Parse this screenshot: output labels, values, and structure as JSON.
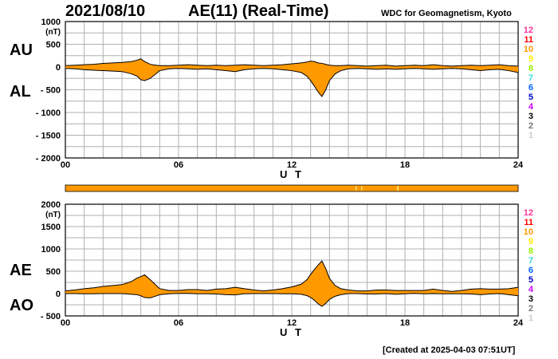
{
  "header": {
    "date": "2021/08/10",
    "title": "AE(11) (Real-Time)",
    "source": "WDC for Geomagnetism, Kyoto"
  },
  "footer": {
    "created": "[Created at 2025-04-03 07:51UT]"
  },
  "labels": {
    "au": "AU",
    "al": "AL",
    "ae": "AE",
    "ao": "AO"
  },
  "colors": {
    "fill": "#ff9900",
    "line": "#000000",
    "grid": "#b0b0b0",
    "status_bar": "#ff9900"
  },
  "legend": {
    "numbers": [
      "12",
      "11",
      "10",
      "9",
      "8",
      "7",
      "6",
      "5",
      "4",
      "3",
      "2",
      "1"
    ],
    "colors": [
      "#ff3399",
      "#ff0000",
      "#ff9900",
      "#ffee00",
      "#99ee00",
      "#33dddd",
      "#0066ff",
      "#0000cc",
      "#cc00ff",
      "#000000",
      "#777777",
      "#cccccc"
    ]
  },
  "chart_data": [
    {
      "type": "area",
      "panel": "AU/AL",
      "xlabel": "U T",
      "xlim": [
        0,
        24
      ],
      "xticks": [
        "00",
        "06",
        "12",
        "18",
        "24"
      ],
      "ylim": [
        -2000,
        1000
      ],
      "yticks": [
        "1000",
        "500",
        "0",
        "- 500",
        "- 1000",
        "- 1500",
        "- 2000"
      ],
      "yunit": "(nT)",
      "x": [
        0,
        0.5,
        1,
        1.5,
        2,
        2.5,
        3,
        3.5,
        3.8,
        4.0,
        4.2,
        4.5,
        4.8,
        5.0,
        5.5,
        6,
        6.5,
        7,
        7.5,
        8,
        8.5,
        9,
        9.5,
        10,
        10.5,
        11,
        11.5,
        12,
        12.5,
        12.8,
        13.0,
        13.2,
        13.4,
        13.6,
        13.8,
        14.0,
        14.3,
        14.6,
        15,
        15.5,
        16,
        16.5,
        17,
        17.5,
        18,
        18.5,
        19,
        19.5,
        20,
        20.5,
        21,
        21.5,
        22,
        22.5,
        23,
        23.5,
        24
      ],
      "series": [
        {
          "name": "AU",
          "values": [
            30,
            40,
            50,
            60,
            80,
            90,
            100,
            120,
            150,
            180,
            120,
            60,
            40,
            30,
            30,
            40,
            50,
            40,
            30,
            40,
            30,
            40,
            50,
            40,
            30,
            40,
            50,
            70,
            90,
            110,
            130,
            120,
            90,
            80,
            60,
            40,
            30,
            30,
            40,
            30,
            20,
            30,
            40,
            20,
            30,
            40,
            30,
            50,
            30,
            20,
            30,
            40,
            30,
            40,
            50,
            30,
            20
          ]
        },
        {
          "name": "AL",
          "values": [
            -30,
            -40,
            -60,
            -70,
            -80,
            -90,
            -100,
            -150,
            -200,
            -280,
            -300,
            -250,
            -150,
            -80,
            -40,
            -30,
            -40,
            -50,
            -40,
            -60,
            -80,
            -100,
            -60,
            -40,
            -30,
            -40,
            -60,
            -80,
            -120,
            -200,
            -300,
            -420,
            -550,
            -650,
            -500,
            -300,
            -150,
            -80,
            -40,
            -30,
            -40,
            -50,
            -40,
            -50,
            -40,
            -30,
            -40,
            -50,
            -40,
            -30,
            -40,
            -60,
            -80,
            -60,
            -50,
            -80,
            -120
          ]
        }
      ]
    },
    {
      "type": "area",
      "panel": "AE/AO",
      "xlabel": "U T",
      "xlim": [
        0,
        24
      ],
      "xticks": [
        "00",
        "06",
        "12",
        "18",
        "24"
      ],
      "ylim": [
        -500,
        2000
      ],
      "yticks": [
        "2000",
        "1500",
        "1000",
        "500",
        "0",
        "- 500"
      ],
      "yunit": "(nT)",
      "x": [
        0,
        0.5,
        1,
        1.5,
        2,
        2.5,
        3,
        3.5,
        3.8,
        4.0,
        4.2,
        4.5,
        4.8,
        5.0,
        5.5,
        6,
        6.5,
        7,
        7.5,
        8,
        8.5,
        9,
        9.5,
        10,
        10.5,
        11,
        11.5,
        12,
        12.5,
        12.8,
        13.0,
        13.2,
        13.4,
        13.6,
        13.8,
        14.0,
        14.3,
        14.6,
        15,
        15.5,
        16,
        16.5,
        17,
        17.5,
        18,
        18.5,
        19,
        19.5,
        20,
        20.5,
        21,
        21.5,
        22,
        22.5,
        23,
        23.5,
        24
      ],
      "series": [
        {
          "name": "AE",
          "values": [
            60,
            80,
            110,
            130,
            160,
            180,
            200,
            270,
            350,
            380,
            420,
            310,
            190,
            110,
            70,
            70,
            90,
            90,
            70,
            100,
            110,
            140,
            110,
            80,
            60,
            80,
            110,
            150,
            210,
            310,
            430,
            540,
            640,
            730,
            560,
            340,
            180,
            110,
            80,
            60,
            60,
            80,
            80,
            70,
            70,
            70,
            70,
            100,
            70,
            50,
            70,
            100,
            110,
            100,
            100,
            110,
            140
          ]
        },
        {
          "name": "AO",
          "values": [
            0,
            0,
            -5,
            -5,
            0,
            0,
            0,
            -15,
            -25,
            -50,
            -90,
            -95,
            -55,
            -25,
            -5,
            5,
            5,
            -5,
            -5,
            -10,
            -25,
            -30,
            -5,
            0,
            0,
            0,
            -5,
            -5,
            -15,
            -45,
            -85,
            -150,
            -230,
            -285,
            -220,
            -130,
            -60,
            -25,
            0,
            0,
            -10,
            -10,
            0,
            -15,
            -5,
            5,
            -5,
            0,
            -5,
            -5,
            -5,
            -10,
            -25,
            -10,
            0,
            -25,
            -50
          ]
        }
      ]
    }
  ]
}
